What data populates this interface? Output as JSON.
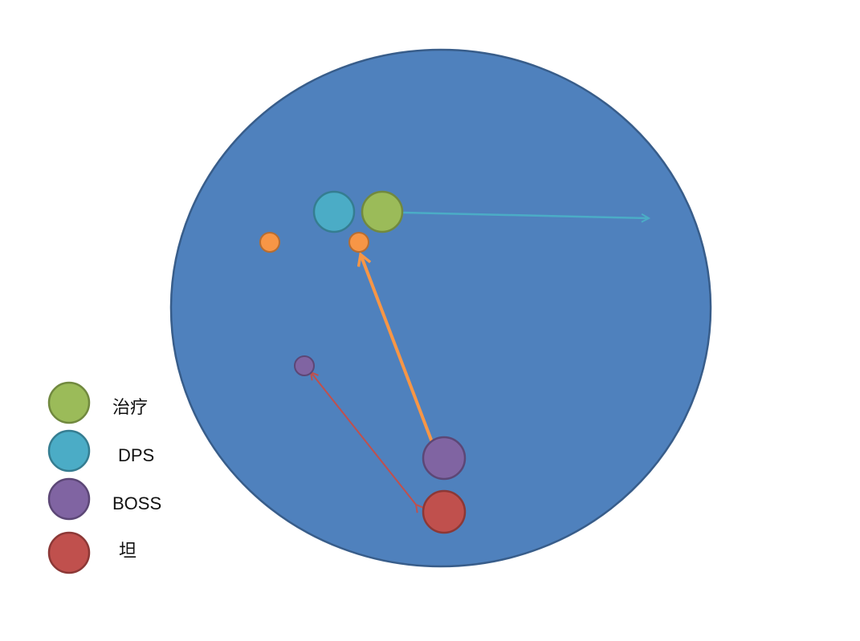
{
  "colors": {
    "arena_fill": "#4F81BD",
    "arena_stroke": "#385D8A",
    "healer": "#9BBB59",
    "healer_stroke": "#71893F",
    "dps": "#4BACC6",
    "dps_stroke": "#357D91",
    "boss": "#8064A2",
    "boss_stroke": "#5C4776",
    "tank": "#C0504D",
    "tank_stroke": "#8C3836",
    "marker": "#F79646",
    "marker_stroke": "#B66D31",
    "arrow_teal": "#4BACC6",
    "arrow_orange": "#F79646",
    "arrow_red": "#C0504D"
  },
  "legend": [
    {
      "key": "healer",
      "label": "治疗"
    },
    {
      "key": "dps",
      "label": "DPS"
    },
    {
      "key": "boss",
      "label": "BOSS"
    },
    {
      "key": "tank",
      "label": "坦"
    }
  ]
}
